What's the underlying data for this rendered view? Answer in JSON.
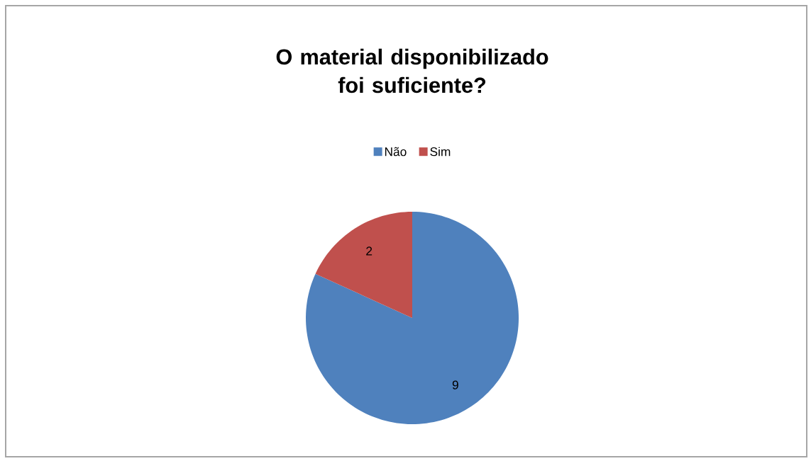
{
  "chart_data": {
    "type": "pie",
    "title": "O material disponibilizado foi suficiente?",
    "categories": [
      "Não",
      "Sim"
    ],
    "values": [
      9,
      2
    ],
    "colors": [
      "#4f81bd",
      "#c0504d"
    ],
    "data_labels": true,
    "legend": "top"
  }
}
